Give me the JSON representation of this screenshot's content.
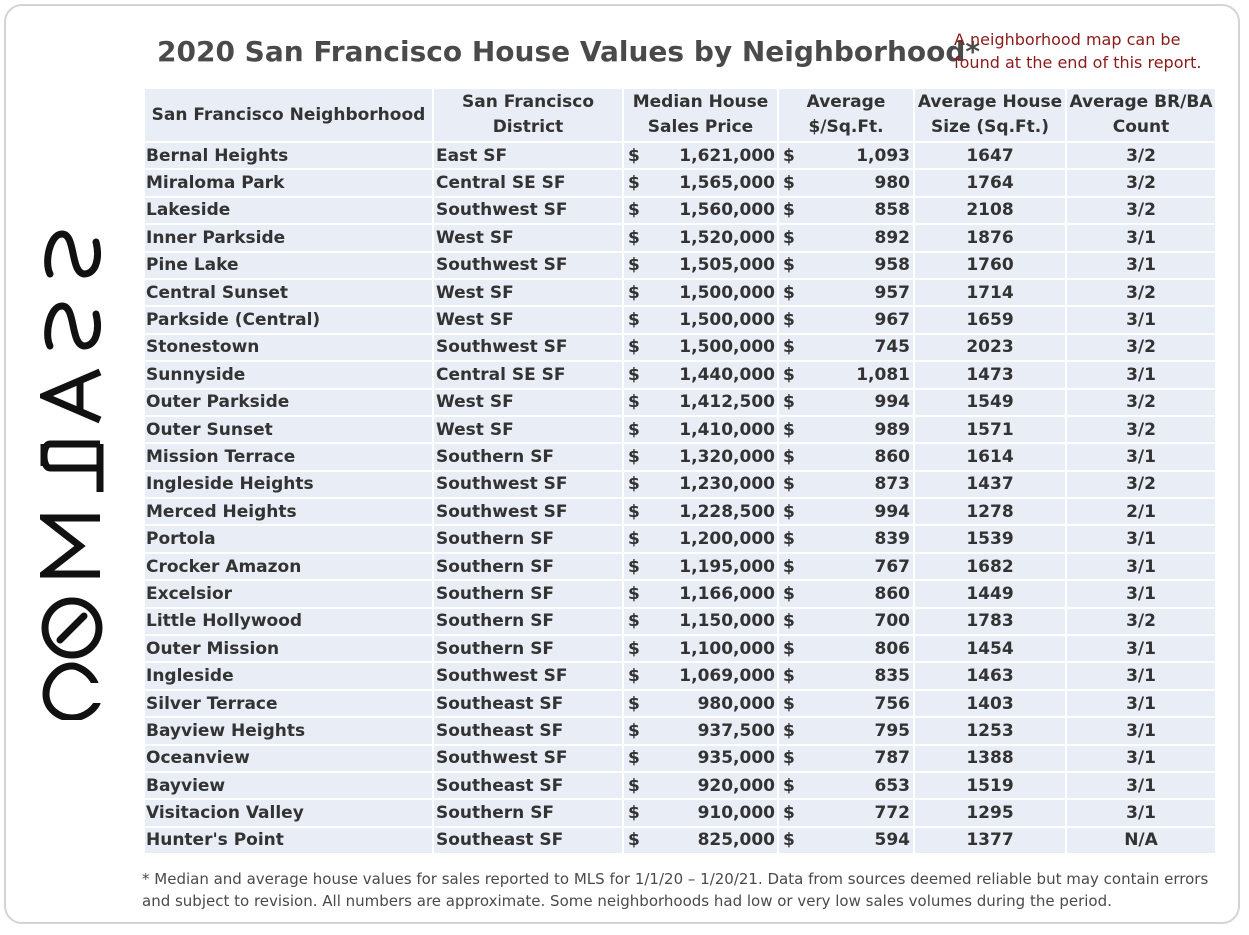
{
  "title": "2020 San Francisco House Values by Neighborhood*",
  "note": "A neighborhood map can be found at the end of this report.",
  "brand": "COMPASS",
  "colors": {
    "note": "#8b1a1a",
    "cell_bg": "#e8edf6",
    "text": "#333333"
  },
  "headers": {
    "neighborhood": "San Francisco Neighborhood",
    "district": "San Francisco District",
    "price": "Median House Sales Price",
    "ppsf": "Average $/Sq.Ft.",
    "size": "Average House Size (Sq.Ft.)",
    "brba": "Average BR/BA Count"
  },
  "currency": "$",
  "rows": [
    {
      "neighborhood": "Bernal Heights",
      "district": "East SF",
      "price": "1,621,000",
      "ppsf": "1,093",
      "size": "1647",
      "brba": "3/2"
    },
    {
      "neighborhood": "Miraloma Park",
      "district": "Central SE SF",
      "price": "1,565,000",
      "ppsf": "980",
      "size": "1764",
      "brba": "3/2"
    },
    {
      "neighborhood": "Lakeside",
      "district": "Southwest SF",
      "price": "1,560,000",
      "ppsf": "858",
      "size": "2108",
      "brba": "3/2"
    },
    {
      "neighborhood": "Inner Parkside",
      "district": "West SF",
      "price": "1,520,000",
      "ppsf": "892",
      "size": "1876",
      "brba": "3/1"
    },
    {
      "neighborhood": "Pine Lake",
      "district": "Southwest SF",
      "price": "1,505,000",
      "ppsf": "958",
      "size": "1760",
      "brba": "3/1"
    },
    {
      "neighborhood": "Central Sunset",
      "district": "West SF",
      "price": "1,500,000",
      "ppsf": "957",
      "size": "1714",
      "brba": "3/2"
    },
    {
      "neighborhood": "Parkside (Central)",
      "district": "West SF",
      "price": "1,500,000",
      "ppsf": "967",
      "size": "1659",
      "brba": "3/1"
    },
    {
      "neighborhood": "Stonestown",
      "district": "Southwest SF",
      "price": "1,500,000",
      "ppsf": "745",
      "size": "2023",
      "brba": "3/2"
    },
    {
      "neighborhood": "Sunnyside",
      "district": "Central SE SF",
      "price": "1,440,000",
      "ppsf": "1,081",
      "size": "1473",
      "brba": "3/1"
    },
    {
      "neighborhood": "Outer Parkside",
      "district": "West SF",
      "price": "1,412,500",
      "ppsf": "994",
      "size": "1549",
      "brba": "3/2"
    },
    {
      "neighborhood": "Outer Sunset",
      "district": "West SF",
      "price": "1,410,000",
      "ppsf": "989",
      "size": "1571",
      "brba": "3/2"
    },
    {
      "neighborhood": "Mission Terrace",
      "district": "Southern SF",
      "price": "1,320,000",
      "ppsf": "860",
      "size": "1614",
      "brba": "3/1"
    },
    {
      "neighborhood": "Ingleside Heights",
      "district": "Southwest SF",
      "price": "1,230,000",
      "ppsf": "873",
      "size": "1437",
      "brba": "3/2"
    },
    {
      "neighborhood": "Merced Heights",
      "district": "Southwest SF",
      "price": "1,228,500",
      "ppsf": "994",
      "size": "1278",
      "brba": "2/1"
    },
    {
      "neighborhood": "Portola",
      "district": "Southern SF",
      "price": "1,200,000",
      "ppsf": "839",
      "size": "1539",
      "brba": "3/1"
    },
    {
      "neighborhood": "Crocker Amazon",
      "district": "Southern SF",
      "price": "1,195,000",
      "ppsf": "767",
      "size": "1682",
      "brba": "3/1"
    },
    {
      "neighborhood": "Excelsior",
      "district": "Southern SF",
      "price": "1,166,000",
      "ppsf": "860",
      "size": "1449",
      "brba": "3/1"
    },
    {
      "neighborhood": "Little Hollywood",
      "district": "Southern SF",
      "price": "1,150,000",
      "ppsf": "700",
      "size": "1783",
      "brba": "3/2"
    },
    {
      "neighborhood": "Outer Mission",
      "district": "Southern SF",
      "price": "1,100,000",
      "ppsf": "806",
      "size": "1454",
      "brba": "3/1"
    },
    {
      "neighborhood": "Ingleside",
      "district": "Southwest SF",
      "price": "1,069,000",
      "ppsf": "835",
      "size": "1463",
      "brba": "3/1"
    },
    {
      "neighborhood": "Silver Terrace",
      "district": "Southeast SF",
      "price": "980,000",
      "ppsf": "756",
      "size": "1403",
      "brba": "3/1"
    },
    {
      "neighborhood": "Bayview Heights",
      "district": "Southeast SF",
      "price": "937,500",
      "ppsf": "795",
      "size": "1253",
      "brba": "3/1"
    },
    {
      "neighborhood": "Oceanview",
      "district": "Southwest SF",
      "price": "935,000",
      "ppsf": "787",
      "size": "1388",
      "brba": "3/1"
    },
    {
      "neighborhood": "Bayview",
      "district": "Southeast SF",
      "price": "920,000",
      "ppsf": "653",
      "size": "1519",
      "brba": "3/1"
    },
    {
      "neighborhood": "Visitacion Valley",
      "district": "Southern SF",
      "price": "910,000",
      "ppsf": "772",
      "size": "1295",
      "brba": "3/1"
    },
    {
      "neighborhood": "Hunter's Point",
      "district": "Southeast SF",
      "price": "825,000",
      "ppsf": "594",
      "size": "1377",
      "brba": "N/A"
    }
  ],
  "footnote": "* Median and average house values for sales reported to MLS for 1/1/20 – 1/20/21. Data from sources deemed reliable but may contain errors and subject to revision. All numbers are approximate. Some neighborhoods had low or very low sales volumes during the period."
}
